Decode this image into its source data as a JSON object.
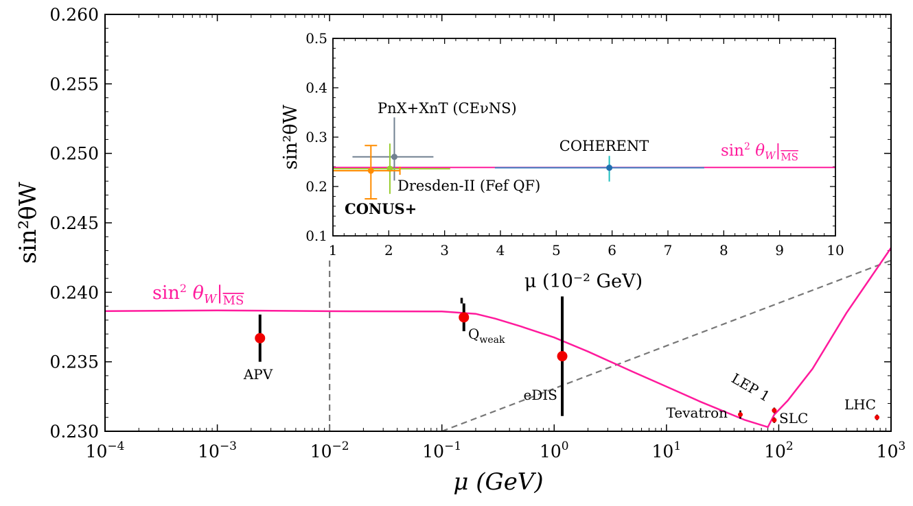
{
  "chart_data": [
    {
      "id": "main",
      "type": "scatter",
      "xscale": "log",
      "xlim": [
        0.0001,
        1000
      ],
      "ylim": [
        0.23,
        0.26
      ],
      "xlabel": "μ (GeV)",
      "ylabel": "sin²θW",
      "x_ticks": [
        {
          "value": 0.0001,
          "base": "10",
          "exp": "−4"
        },
        {
          "value": 0.001,
          "base": "10",
          "exp": "−3"
        },
        {
          "value": 0.01,
          "base": "10",
          "exp": "−2"
        },
        {
          "value": 0.1,
          "base": "10",
          "exp": "−1"
        },
        {
          "value": 1,
          "base": "10",
          "exp": "0"
        },
        {
          "value": 10,
          "base": "10",
          "exp": "1"
        },
        {
          "value": 100,
          "base": "10",
          "exp": "2"
        },
        {
          "value": 1000,
          "base": "10",
          "exp": "3"
        }
      ],
      "y_ticks": [
        {
          "value": 0.23,
          "label": "0.230"
        },
        {
          "value": 0.235,
          "label": "0.235"
        },
        {
          "value": 0.24,
          "label": "0.240"
        },
        {
          "value": 0.245,
          "label": "0.245"
        },
        {
          "value": 0.25,
          "label": "0.250"
        },
        {
          "value": 0.255,
          "label": "0.255"
        },
        {
          "value": 0.26,
          "label": "0.260"
        }
      ],
      "curve_label": {
        "x": 0.003,
        "y": 0.2396,
        "main": "sin",
        "sup": "2",
        "theta": " θ",
        "sub": "W",
        "bar": "|",
        "scheme": "MS"
      },
      "curve_color": "#ff1a9c",
      "running_curve": [
        [
          0.0001,
          0.23865
        ],
        [
          0.001,
          0.2387
        ],
        [
          0.01,
          0.23864
        ],
        [
          0.1,
          0.23862
        ],
        [
          0.2,
          0.23845
        ],
        [
          0.3,
          0.2381
        ],
        [
          0.5,
          0.23756
        ],
        [
          1.0,
          0.23675
        ],
        [
          2.0,
          0.23574
        ],
        [
          5.0,
          0.23429
        ],
        [
          10.0,
          0.23321
        ],
        [
          20.0,
          0.23213
        ],
        [
          50.0,
          0.23081
        ],
        [
          80.0,
          0.2303
        ],
        [
          91.19,
          0.2312
        ],
        [
          120,
          0.2322
        ],
        [
          200,
          0.2345
        ],
        [
          400,
          0.2385
        ],
        [
          1000,
          0.2432
        ]
      ],
      "points": [
        {
          "name": "APV",
          "x": 0.0024,
          "y": 0.2367,
          "ylo": 0.235,
          "yhi": 0.2384,
          "size": "large",
          "color": "#f00000"
        },
        {
          "name": "Qweak",
          "x": 0.157,
          "y": 0.2382,
          "ylo": 0.2372,
          "yhi": 0.2392,
          "size": "large",
          "color": "#f00000"
        },
        {
          "name": "eDIS",
          "x": 1.18,
          "y": 0.2354,
          "ylo": 0.2311,
          "yhi": 0.2397,
          "size": "large",
          "color": "#f00000"
        },
        {
          "name": "Tevatron",
          "x": 45.5,
          "y": 0.2312,
          "ylo": 0.2309,
          "yhi": 0.2315,
          "size": "small",
          "color": "#f00000"
        },
        {
          "name": "LEP 1",
          "x": 91.19,
          "y": 0.2315,
          "ylo": 0.2313,
          "yhi": 0.2317,
          "size": "small",
          "color": "#f00000"
        },
        {
          "name": "SLC",
          "x": 91.19,
          "y": 0.2308,
          "ylo": 0.2306,
          "yhi": 0.231,
          "size": "small",
          "color": "#f00000"
        },
        {
          "name": "LHC",
          "x": 750,
          "y": 0.231,
          "ylo": 0.2308,
          "yhi": 0.2312,
          "size": "small",
          "color": "#f00000"
        }
      ],
      "point_labels": {
        "APV": "APV",
        "Qweak_main": "Q",
        "Qweak_sub": "weak",
        "eDIS": "eDIS",
        "Tevatron": "Tevatron",
        "LEP": "LEP 1",
        "SLC": "SLC",
        "LHC": "LHC"
      },
      "qweak_stub": {
        "x": 0.15,
        "ylo": 0.2392,
        "yhi": 0.2396
      },
      "zoom_lines": [
        {
          "x1": 0.01,
          "y1": 0.23,
          "x2": 0.01,
          "y2": 0.2423
        },
        {
          "x1": 0.1,
          "y1": 0.23,
          "x2": 1000,
          "y2": 0.2423
        }
      ]
    },
    {
      "id": "inset",
      "type": "scatter",
      "xlim": [
        1,
        10
      ],
      "ylim": [
        0.1,
        0.5
      ],
      "xlabel": "μ (10⁻² GeV)",
      "ylabel": "sin²θW",
      "x_ticks": [
        "1",
        "2",
        "3",
        "4",
        "5",
        "6",
        "7",
        "8",
        "9",
        "10"
      ],
      "y_ticks": [
        "0.1",
        "0.2",
        "0.3",
        "0.4",
        "0.5"
      ],
      "reference_line": {
        "y": 0.2386,
        "color": "#ff1a9c"
      },
      "reference_label": {
        "main": "sin",
        "sup": "2",
        "theta": " θ",
        "sub": "W",
        "bar": "|",
        "scheme": "MS"
      },
      "points": [
        {
          "name": "COHERENT",
          "x": 5.95,
          "y": 0.238,
          "xlo": 3.9,
          "xhi": 7.65,
          "ylo": 0.21,
          "yhi": 0.262,
          "color": "#1f6fb0",
          "xerr_color": "#3a7cc0",
          "yerr_color": "#1fbfbf"
        },
        {
          "name": "PnX+XnT (CEνNS)",
          "x": 2.1,
          "y": 0.26,
          "xlo": 1.35,
          "xhi": 2.8,
          "ylo": 0.212,
          "yhi": 0.34,
          "color": "#708090"
        },
        {
          "name": "Dresden-II (Fef QF)",
          "x": 2.02,
          "y": 0.236,
          "xlo": 1.0,
          "xhi": 3.1,
          "ylo": 0.185,
          "yhi": 0.287,
          "color": "#9acd32"
        },
        {
          "name": "CONUS+",
          "x": 1.68,
          "y": 0.232,
          "xlo": 1.0,
          "xhi": 2.2,
          "ylo": 0.175,
          "yhi": 0.283,
          "color": "#ff8c00"
        }
      ],
      "labels": {
        "coherent": "COHERENT",
        "pnx": "PnX+XnT  (CEνNS)",
        "dresden": "Dresden-II (Fef QF)",
        "conus": "CONUS+"
      },
      "label_colors": {
        "coherent": "#20b2aa",
        "pnx": "#7a8a9c",
        "dresden": "#9acd32",
        "conus": "#ff8c00"
      }
    }
  ]
}
